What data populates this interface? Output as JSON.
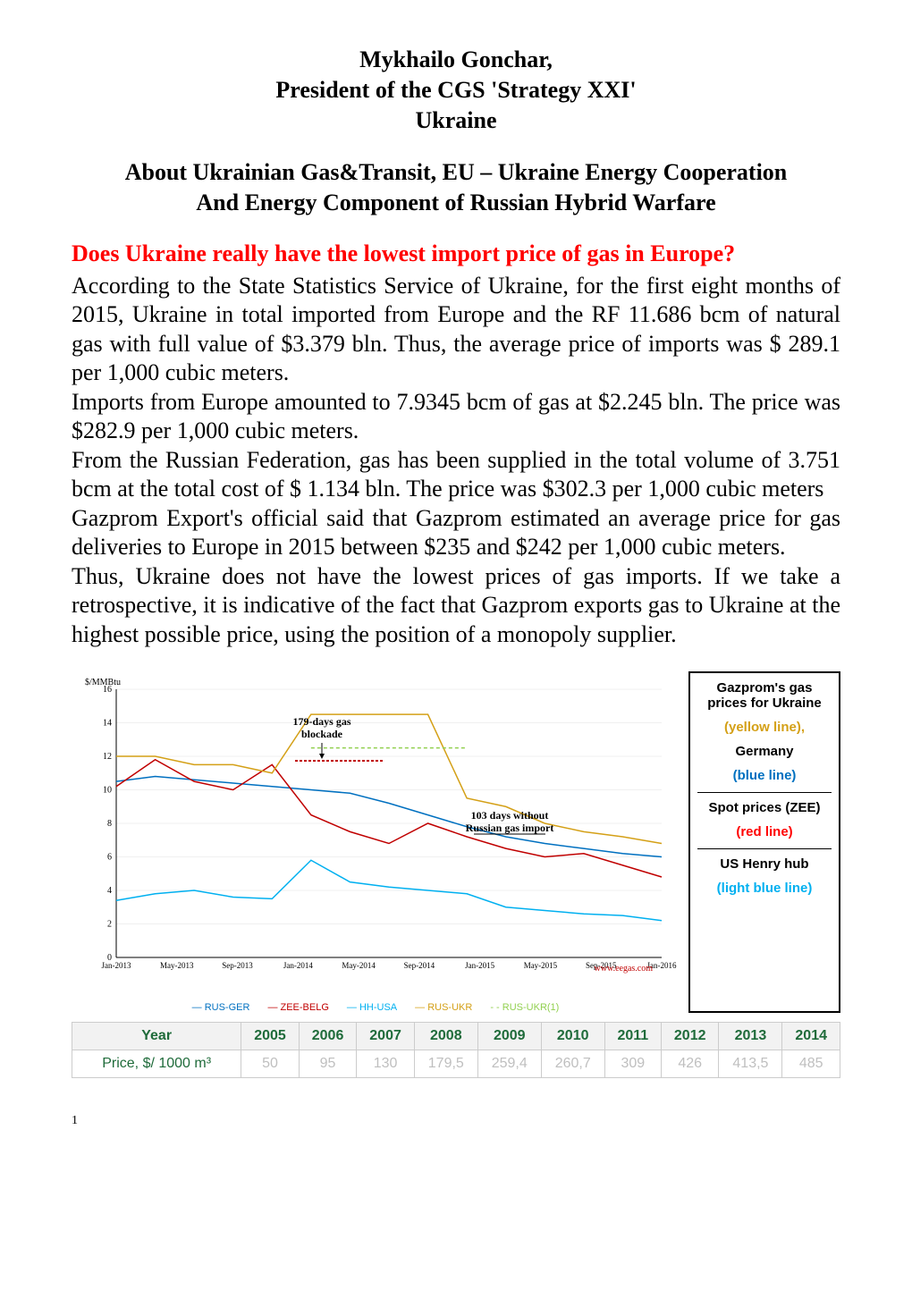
{
  "header": {
    "line1": "Mykhailo Gonchar,",
    "line2": "President of the CGS 'Strategy XXI'",
    "line3": "Ukraine"
  },
  "title": {
    "line1": "About Ukrainian Gas&Transit, EU – Ukraine Energy Cooperation",
    "line2": "And Energy Component of Russian Hybrid Warfare"
  },
  "question": "Does Ukraine really have the lowest import price of gas in Europe?",
  "paragraphs": {
    "p1": "According to the State Statistics Service of Ukraine, for the first eight months of 2015, Ukraine in total imported from Europe and the RF 11.686 bcm of natural gas with full value of  $3.379 bln. Thus, the average price of imports was $ 289.1 per 1,000 cubic meters.",
    "p2": "Imports from Europe amounted to 7.9345 bcm of gas at $2.245 bln. The price was $282.9 per 1,000 cubic meters.",
    "p3": "From the Russian Federation, gas has been supplied in the total volume of 3.751 bcm at the total cost of $ 1.134 bln. The price was $302.3 per 1,000 cubic meters",
    "p4": "Gazprom Export's official said that Gazprom estimated an average price for gas deliveries to Europe in 2015 between $235 and $242 per 1,000 cubic meters.",
    "p5": "Thus, Ukraine does not have the lowest prices of gas imports. If we take a retrospective, it is indicative of the fact that Gazprom exports gas to Ukraine at the highest possible price, using the position of a monopoly supplier."
  },
  "chart": {
    "type": "line",
    "y_label": "$/MMBtu",
    "ylim": [
      0,
      16
    ],
    "ytick_step": 2,
    "xticks": [
      "Jan-2013",
      "May-2013",
      "Sep-2013",
      "Jan-2014",
      "May-2014",
      "Sep-2014",
      "Jan-2015",
      "May-2015",
      "Sep-2015",
      "Jan-2016"
    ],
    "annotations": {
      "a1": "179-days gas blockade",
      "a2": "103 days without Russian gas import"
    },
    "series": {
      "rus_ger": {
        "label": "RUS-GER",
        "color": "#0070c0",
        "points": [
          10.5,
          10.8,
          10.6,
          10.4,
          10.2,
          10.0,
          9.8,
          9.2,
          8.5,
          7.8,
          7.2,
          6.8,
          6.5,
          6.2,
          6.0
        ]
      },
      "zee_belg": {
        "label": "ZEE-BELG",
        "color": "#c00000",
        "points": [
          10.2,
          11.8,
          10.5,
          10.0,
          11.5,
          8.5,
          7.5,
          6.8,
          8.0,
          7.2,
          6.5,
          6.0,
          6.2,
          5.5,
          4.8
        ]
      },
      "hh_usa": {
        "label": "HH-USA",
        "color": "#00b0f0",
        "points": [
          3.4,
          3.8,
          4.0,
          3.6,
          3.5,
          5.8,
          4.5,
          4.2,
          4.0,
          3.8,
          3.0,
          2.8,
          2.6,
          2.5,
          2.2
        ]
      },
      "rus_ukr": {
        "label": "RUS-UKR",
        "color": "#d4a017",
        "points": [
          12.0,
          12.0,
          11.5,
          11.5,
          11.0,
          14.5,
          14.5,
          14.5,
          14.5,
          9.5,
          9.0,
          8.0,
          7.5,
          7.2,
          6.8
        ]
      },
      "rus_ukr1": {
        "label": "RUS-UKR(1)",
        "color": "#92d050",
        "dashed": true,
        "points": [
          null,
          null,
          null,
          null,
          null,
          12.5,
          12.5,
          12.5,
          12.5,
          12.5,
          null,
          null,
          null,
          null,
          null
        ]
      }
    },
    "bottom_legend": [
      "RUS-GER",
      "ZEE-BELG",
      "HH-USA",
      "RUS-UKR",
      "RUS-UKR(1)"
    ],
    "source": "www.eegas.com",
    "background_color": "#ffffff",
    "grid_color": "#e0e0e0",
    "axis_fontsize": 10
  },
  "legend_box": {
    "title": "Gazprom's gas prices for Ukraine",
    "ukraine": "(yellow line),",
    "germany_label": "Germany",
    "germany": "(blue line)",
    "spot_label": "Spot prices (ZEE)",
    "spot": "(red line)",
    "hh_label": "US Henry hub",
    "hh": "(light blue line)"
  },
  "price_table": {
    "header_label": "Year",
    "row_label": "Price, $/ 1000 m³",
    "years": [
      "2005",
      "2006",
      "2007",
      "2008",
      "2009",
      "2010",
      "2011",
      "2012",
      "2013",
      "2014"
    ],
    "prices": [
      "50",
      "95",
      "130",
      "179,5",
      "259,4",
      "260,7",
      "309",
      "426",
      "413,5",
      "485"
    ]
  },
  "page_number": "1"
}
